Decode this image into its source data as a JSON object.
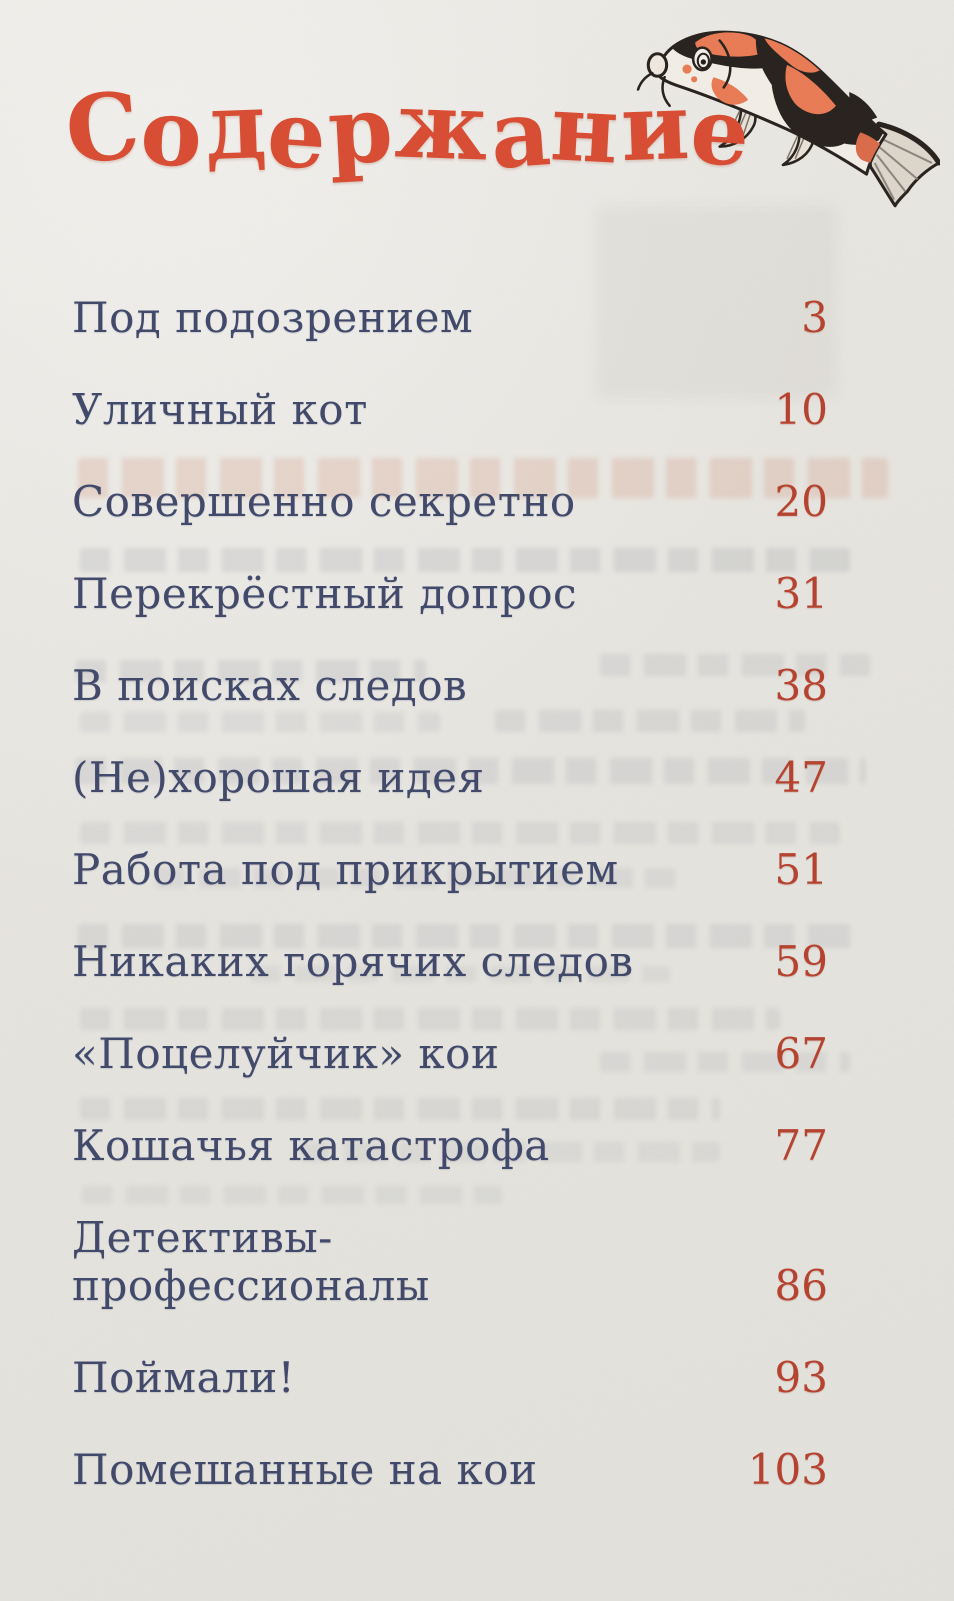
{
  "page_title": "Содержание",
  "illustration": "koi-fish",
  "toc": [
    {
      "title": "Под подозрением",
      "page": "3"
    },
    {
      "title": "Уличный кот",
      "page": "10"
    },
    {
      "title": "Совершенно секретно",
      "page": "20"
    },
    {
      "title": "Перекрёстный допрос",
      "page": "31"
    },
    {
      "title": "В поисках следов",
      "page": "38"
    },
    {
      "title": "(Не)хорошая идея",
      "page": "47"
    },
    {
      "title": "Работа под прикрытием",
      "page": "51"
    },
    {
      "title": "Никаких горячих следов",
      "page": "59"
    },
    {
      "title": "«Поцелуйчик» кои",
      "page": "67"
    },
    {
      "title": "Кошачья катастрофа",
      "page": "77"
    },
    {
      "title": "Детективы-\nпрофессионалы",
      "page": "86"
    },
    {
      "title": "Поймали!",
      "page": "93"
    },
    {
      "title": "Помешанные на кои",
      "page": "103"
    }
  ],
  "colors": {
    "title_red": "#d84b31",
    "page_number_red": "#b5402c",
    "entry_blue": "#3f4769",
    "paper": "#e6e4df",
    "fish_black": "#26201c",
    "fish_orange": "#e97a54",
    "fish_body": "#f2eee6"
  }
}
